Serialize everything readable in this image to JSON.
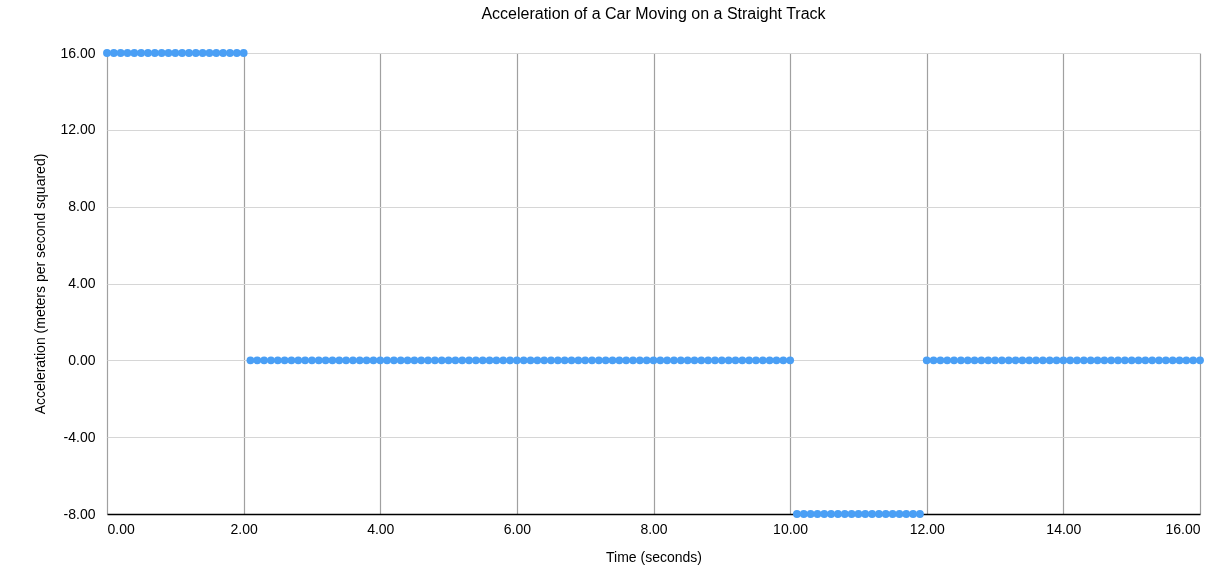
{
  "chart_data": {
    "type": "scatter",
    "title": "Acceleration of a Car Moving on a Straight Track",
    "xlabel": "Time (seconds)",
    "ylabel": "Acceleration (meters per second squared)",
    "x": [
      0,
      0.1,
      0.2,
      0.3,
      0.4,
      0.5,
      0.6,
      0.7,
      0.8,
      0.9,
      1,
      1.1,
      1.2,
      1.3,
      1.4,
      1.5,
      1.6,
      1.7,
      1.8,
      1.9,
      2,
      2.1,
      2.2,
      2.3,
      2.4,
      2.5,
      2.6,
      2.7,
      2.8,
      2.9,
      3,
      3.1,
      3.2,
      3.3,
      3.4,
      3.5,
      3.6,
      3.7,
      3.8,
      3.9,
      4,
      4.1,
      4.2,
      4.3,
      4.4,
      4.5,
      4.6,
      4.7,
      4.8,
      4.9,
      5,
      5.1,
      5.2,
      5.3,
      5.4,
      5.5,
      5.6,
      5.7,
      5.8,
      5.9,
      6,
      6.1,
      6.2,
      6.3,
      6.4,
      6.5,
      6.6,
      6.7,
      6.8,
      6.9,
      7,
      7.1,
      7.2,
      7.3,
      7.4,
      7.5,
      7.6,
      7.7,
      7.8,
      7.9,
      8,
      8.1,
      8.2,
      8.3,
      8.4,
      8.5,
      8.6,
      8.7,
      8.8,
      8.9,
      9,
      9.1,
      9.2,
      9.3,
      9.4,
      9.5,
      9.6,
      9.7,
      9.8,
      9.9,
      10,
      10.1,
      10.2,
      10.3,
      10.4,
      10.5,
      10.6,
      10.7,
      10.8,
      10.9,
      11,
      11.1,
      11.2,
      11.3,
      11.4,
      11.5,
      11.6,
      11.7,
      11.8,
      11.9,
      12,
      12.1,
      12.2,
      12.3,
      12.4,
      12.5,
      12.6,
      12.7,
      12.8,
      12.9,
      13,
      13.1,
      13.2,
      13.3,
      13.4,
      13.5,
      13.6,
      13.7,
      13.8,
      13.9,
      14,
      14.1,
      14.2,
      14.3,
      14.4,
      14.5,
      14.6,
      14.7,
      14.8,
      14.9,
      15,
      15.1,
      15.2,
      15.3,
      15.4,
      15.5,
      15.6,
      15.7,
      15.8,
      15.9,
      16
    ],
    "series": [
      {
        "color": "#4a9ff5",
        "values": [
          16,
          16,
          16,
          16,
          16,
          16,
          16,
          16,
          16,
          16,
          16,
          16,
          16,
          16,
          16,
          16,
          16,
          16,
          16,
          16,
          16,
          0,
          0,
          0,
          0,
          0,
          0,
          0,
          0,
          0,
          0,
          0,
          0,
          0,
          0,
          0,
          0,
          0,
          0,
          0,
          0,
          0,
          0,
          0,
          0,
          0,
          0,
          0,
          0,
          0,
          0,
          0,
          0,
          0,
          0,
          0,
          0,
          0,
          0,
          0,
          0,
          0,
          0,
          0,
          0,
          0,
          0,
          0,
          0,
          0,
          0,
          0,
          0,
          0,
          0,
          0,
          0,
          0,
          0,
          0,
          0,
          0,
          0,
          0,
          0,
          0,
          0,
          0,
          0,
          0,
          0,
          0,
          0,
          0,
          0,
          0,
          0,
          0,
          0,
          0,
          0,
          -8,
          -8,
          -8,
          -8,
          -8,
          -8,
          -8,
          -8,
          -8,
          -8,
          -8,
          -8,
          -8,
          -8,
          -8,
          -8,
          -8,
          -8,
          -8,
          0,
          0,
          0,
          0,
          0,
          0,
          0,
          0,
          0,
          0,
          0,
          0,
          0,
          0,
          0,
          0,
          0,
          0,
          0,
          0,
          0,
          0,
          0,
          0,
          0,
          0,
          0,
          0,
          0,
          0,
          0,
          0,
          0,
          0,
          0,
          0,
          0,
          0,
          0,
          0,
          0
        ]
      }
    ],
    "xlim": [
      0,
      16
    ],
    "ylim": [
      -8,
      16
    ],
    "xticks": [
      {
        "value": 0,
        "label": "0.00"
      },
      {
        "value": 2,
        "label": "2.00"
      },
      {
        "value": 4,
        "label": "4.00"
      },
      {
        "value": 6,
        "label": "6.00"
      },
      {
        "value": 8,
        "label": "8.00"
      },
      {
        "value": 10,
        "label": "10.00"
      },
      {
        "value": 12,
        "label": "12.00"
      },
      {
        "value": 14,
        "label": "14.00"
      },
      {
        "value": 16,
        "label": "16.00"
      }
    ],
    "yticks": [
      {
        "value": -8,
        "label": "-8.00"
      },
      {
        "value": -4,
        "label": "-4.00"
      },
      {
        "value": 0,
        "label": "0.00"
      },
      {
        "value": 4,
        "label": "4.00"
      },
      {
        "value": 8,
        "label": "8.00"
      },
      {
        "value": 12,
        "label": "12.00"
      },
      {
        "value": 16,
        "label": "16.00"
      }
    ],
    "grid": true,
    "marker": "circle"
  }
}
